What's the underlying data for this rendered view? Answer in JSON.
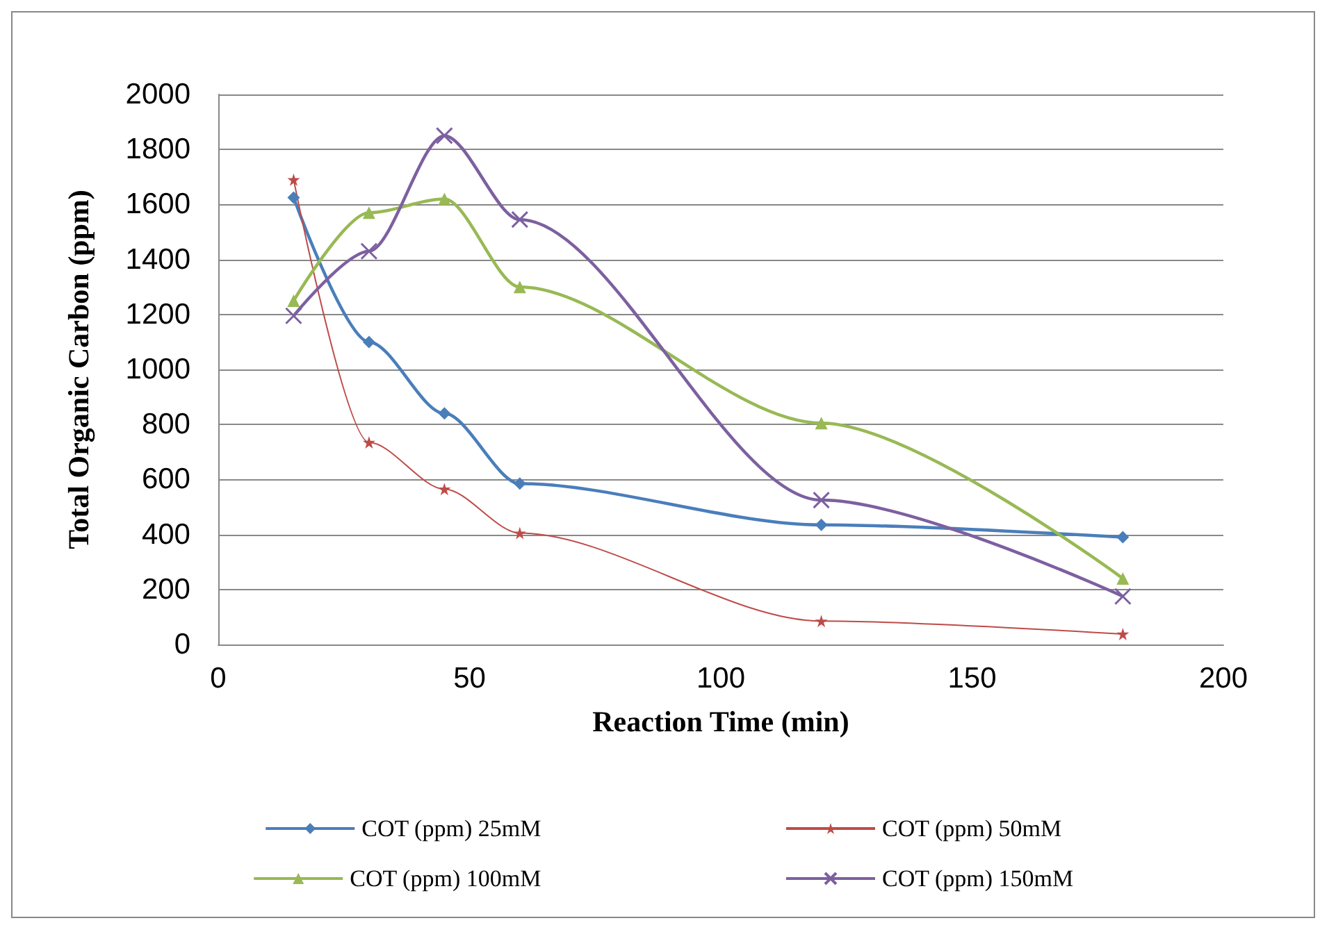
{
  "chart_data": {
    "type": "line",
    "xlabel": "Reaction Time (min)",
    "ylabel": "Total Organic Carbon (ppm)",
    "x": [
      15,
      30,
      45,
      60,
      120,
      180
    ],
    "xlim": [
      0,
      200
    ],
    "xticks": [
      0,
      50,
      100,
      150,
      200
    ],
    "ylim": [
      0,
      2000
    ],
    "yticks": [
      0,
      200,
      400,
      600,
      800,
      1000,
      1200,
      1400,
      1600,
      1800,
      2000
    ],
    "grid": "y",
    "legend": "bottom",
    "series": [
      {
        "name": "COT (ppm) 25mM",
        "color": "#4a7ebb",
        "marker": "diamond",
        "values": [
          1625,
          1100,
          840,
          585,
          435,
          390
        ]
      },
      {
        "name": "COT (ppm) 50mM",
        "color": "#be4b48",
        "marker": "star",
        "values": [
          1690,
          735,
          565,
          405,
          85,
          38
        ]
      },
      {
        "name": "COT (ppm) 100mM",
        "color": "#98b954",
        "marker": "triangle",
        "values": [
          1250,
          1570,
          1620,
          1300,
          805,
          240
        ]
      },
      {
        "name": "COT (ppm) 150mM",
        "color": "#7d60a0",
        "marker": "cross",
        "values": [
          1195,
          1430,
          1850,
          1545,
          525,
          175
        ]
      }
    ]
  }
}
